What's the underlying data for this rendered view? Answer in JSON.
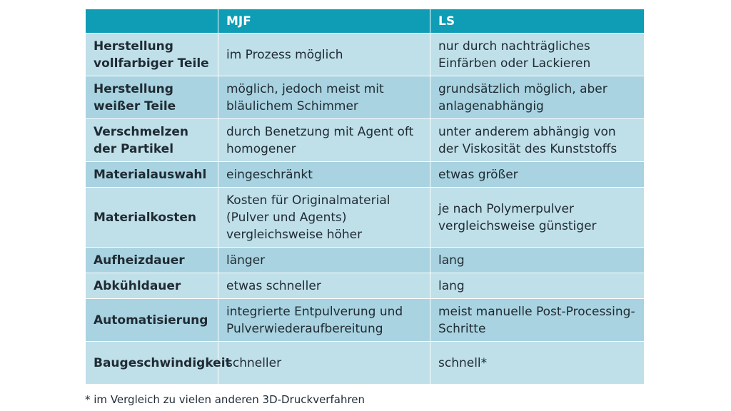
{
  "table": {
    "headers": [
      "",
      "MJF",
      "LS"
    ],
    "rows": [
      [
        "Herstellung vollfarbiger Teile",
        "im Prozess möglich",
        "nur durch nachträgliches Einfärben oder Lackieren"
      ],
      [
        "Herstellung weißer Teile",
        "möglich, jedoch meist mit bläulichem Schimmer",
        "grundsätzlich möglich, aber anlagenabhängig"
      ],
      [
        "Verschmelzen der Partikel",
        "durch Benetzung mit Agent oft homogener",
        "unter anderem abhängig von der Viskosität des Kunststoffs"
      ],
      [
        "Materialauswahl",
        "eingeschränkt",
        "etwas größer"
      ],
      [
        "Materialkosten",
        "Kosten für Originalmaterial (Pulver und Agents) vergleichsweise höher",
        "je nach Polymerpulver vergleichsweise günstiger"
      ],
      [
        "Aufheizdauer",
        "länger",
        "lang"
      ],
      [
        "Abkühldauer",
        "etwas schneller",
        "lang"
      ],
      [
        "Automatisierung",
        "integrierte Entpulverung und Pulverwiederaufbereitung",
        "meist manuelle Post-Processing-Schritte"
      ],
      [
        "Baugeschwindigkeit",
        "schneller",
        "schnell*"
      ]
    ]
  },
  "footnote": "* im Vergleich zu vielen anderen 3D-Druckverfahren"
}
